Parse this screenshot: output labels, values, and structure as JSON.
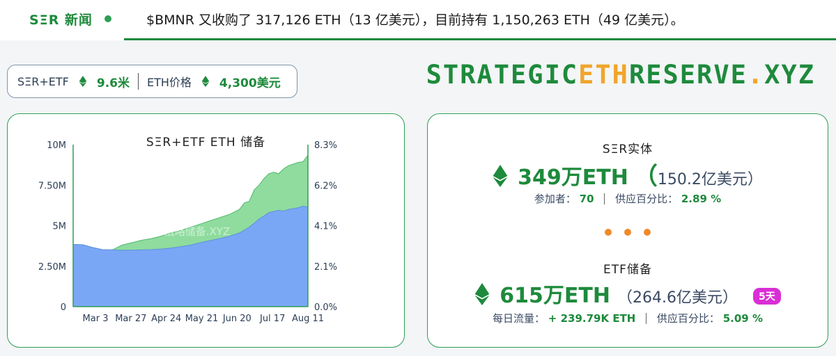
{
  "ticker": {
    "brand": "SΞR 新闻",
    "news": "$BMNR 又收购了 317,126 ETH（13 亿美元），目前持有 1,150,263 ETH（49 亿美元）。"
  },
  "stats": {
    "ser_etf_label": "SΞR+ETF",
    "ser_etf_value": "9.6米",
    "eth_price_label": "ETH价格",
    "eth_price_value": "4,300美元"
  },
  "logo": {
    "part1": "STRATEGIC",
    "part2": "ETH",
    "part3": "RESERVE",
    "part4": ".",
    "part5": "XYZ"
  },
  "colors": {
    "brand_green": "#1e8a3c",
    "accent_orange": "#f0a52a",
    "ser_fill": "#7aa7f5",
    "etf_fill": "#8fdc9e",
    "badge_pink": "#d92ed6"
  },
  "chart_data": {
    "type": "area",
    "title": "SΞR+ETF ETH 储备",
    "watermark": "战略储备.XYZ",
    "categories": [
      "Mar 3",
      "Mar 27",
      "Apr 24",
      "May 21",
      "Jun 20",
      "Jul 17",
      "Aug 11"
    ],
    "y_ticks": [
      "0",
      "2.50M",
      "5M",
      "7.50M",
      "10M"
    ],
    "y2_ticks": [
      "0.0%",
      "2.1%",
      "4.1%",
      "6.2%",
      "8.3%"
    ],
    "ylim": [
      0,
      10000000
    ],
    "series": [
      {
        "id": "ser",
        "color": "#7aa7f5",
        "x": [
          0,
          2,
          4,
          6,
          8,
          10,
          12,
          14,
          16,
          18,
          20,
          22,
          24,
          26,
          28,
          30,
          32,
          34,
          36,
          38,
          40,
          42,
          43,
          44,
          45,
          46,
          47,
          48
        ],
        "values": [
          3840000,
          3820000,
          3650000,
          3520000,
          3500000,
          3480000,
          3490000,
          3500000,
          3520000,
          3560000,
          3620000,
          3700000,
          3800000,
          3950000,
          4080000,
          4200000,
          4350000,
          4550000,
          4900000,
          5400000,
          5800000,
          5950000,
          5900000,
          6000000,
          6050000,
          6100000,
          6200000,
          6150000
        ]
      },
      {
        "id": "total",
        "color": "#8fdc9e",
        "x": [
          0,
          2,
          4,
          6,
          8,
          10,
          12,
          14,
          16,
          18,
          20,
          22,
          24,
          26,
          28,
          30,
          32,
          34,
          35,
          36,
          37,
          38,
          39,
          40,
          41,
          42,
          43,
          44,
          45,
          46,
          47,
          48
        ],
        "values": [
          3840000,
          3820000,
          3650000,
          3520000,
          3500000,
          3800000,
          3950000,
          4100000,
          4200000,
          4350000,
          4550000,
          4700000,
          4900000,
          5100000,
          5300000,
          5500000,
          5700000,
          6000000,
          6400000,
          6500000,
          7200000,
          7500000,
          7900000,
          8200000,
          8300000,
          8200000,
          8500000,
          8700000,
          8800000,
          8900000,
          8950000,
          9350000
        ]
      }
    ]
  },
  "ser": {
    "title": "SΞR实体",
    "amount": "349万ETH",
    "paren_open": "（",
    "usd": "150.2亿美元）",
    "participants_label": "参加者：",
    "participants_value": "70",
    "supply_label": "供应百分比：",
    "supply_value": "2.89 %"
  },
  "etf": {
    "title": "ETF储备",
    "amount": "615万ETH",
    "usd": "（264.6亿美元）",
    "badge": "5天",
    "flow_label": "每日流量：",
    "flow_value": "+ 239.79K ETH",
    "supply_label": "供应百分比：",
    "supply_value": "5.09 %"
  }
}
